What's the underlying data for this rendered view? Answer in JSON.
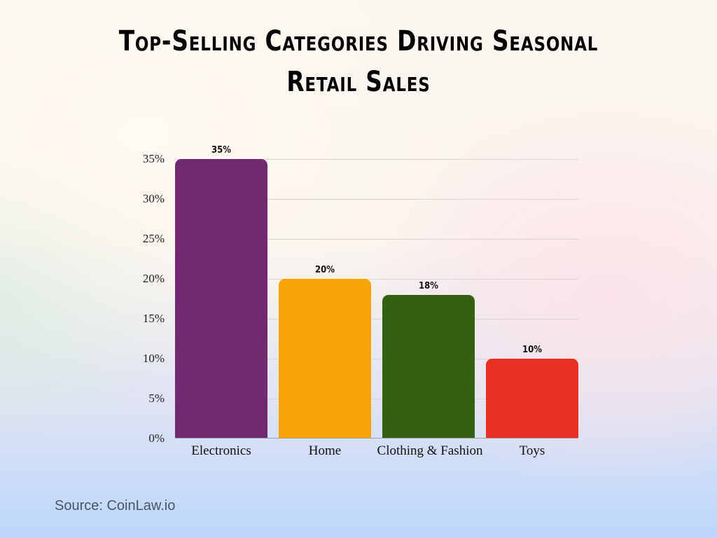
{
  "chart_data": {
    "type": "bar",
    "title": "Top-Selling Categories Driving Seasonal Retail Sales",
    "categories": [
      "Electronics",
      "Home",
      "Clothing & Fashion",
      "Toys"
    ],
    "values": [
      35,
      20,
      18,
      10
    ],
    "value_labels": [
      "35%",
      "20%",
      "18%",
      "10%"
    ],
    "colors": [
      "#722970",
      "#f9a307",
      "#336111",
      "#e72f22"
    ],
    "xlabel": "",
    "ylabel": "",
    "ylim": [
      0,
      35
    ],
    "yticks": [
      "0%",
      "5%",
      "10%",
      "15%",
      "20%",
      "25%",
      "30%",
      "35%"
    ],
    "grid": true,
    "legend": "none"
  },
  "title": {
    "line1": "Top-Selling Categories Driving Seasonal",
    "line2": "Retail Sales"
  },
  "source": "Source: CoinLaw.io"
}
